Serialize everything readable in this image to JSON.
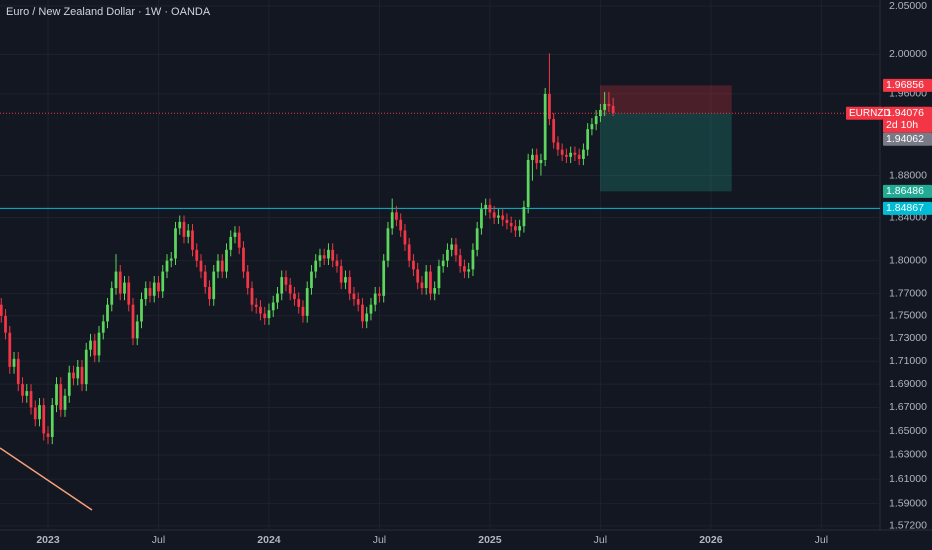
{
  "chart_data": {
    "type": "candlestick",
    "title": "Euro / New Zealand Dollar · 1W · OANDA",
    "symbol": "EURNZD",
    "countdown": "2d 10h",
    "log_scale": true,
    "grid": true,
    "up_color": "#5cd65c",
    "down_color": "#f23645",
    "xlim": [
      -11.3,
      195.8
    ],
    "xticks": [
      {
        "value": 0,
        "label": "2023"
      },
      {
        "value": 26,
        "label": "Jul"
      },
      {
        "value": 52,
        "label": "2024"
      },
      {
        "value": 78,
        "label": "Jul"
      },
      {
        "value": 104,
        "label": "2025"
      },
      {
        "value": 130,
        "label": "Jul"
      },
      {
        "value": 156,
        "label": "2026"
      },
      {
        "value": 182,
        "label": "Jul"
      }
    ],
    "ylim": [
      1.5687,
      2.0563
    ],
    "yticks": [
      {
        "value": 2.05,
        "label": "2.05000"
      },
      {
        "value": 2.0,
        "label": "2.00000"
      },
      {
        "value": 1.96,
        "label": "1.96000"
      },
      {
        "value": 1.88,
        "label": "1.88000"
      },
      {
        "value": 1.84,
        "label": "1.84000"
      },
      {
        "value": 1.8,
        "label": "1.80000"
      },
      {
        "value": 1.77,
        "label": "1.77000"
      },
      {
        "value": 1.75,
        "label": "1.75000"
      },
      {
        "value": 1.73,
        "label": "1.73000"
      },
      {
        "value": 1.71,
        "label": "1.71000"
      },
      {
        "value": 1.69,
        "label": "1.69000"
      },
      {
        "value": 1.67,
        "label": "1.67000"
      },
      {
        "value": 1.65,
        "label": "1.65000"
      },
      {
        "value": 1.63,
        "label": "1.63000"
      },
      {
        "value": 1.61,
        "label": "1.61000"
      },
      {
        "value": 1.59,
        "label": "1.59000"
      },
      {
        "value": 1.572,
        "label": "1.57200"
      }
    ],
    "x": [
      -11,
      -10,
      -9,
      -8,
      -7,
      -6,
      -5,
      -4,
      -3,
      -2,
      -1,
      0,
      1,
      2,
      3,
      4,
      5,
      6,
      7,
      8,
      9,
      10,
      11,
      12,
      13,
      14,
      15,
      16,
      17,
      18,
      19,
      20,
      21,
      22,
      23,
      24,
      25,
      26,
      27,
      28,
      29,
      30,
      31,
      32,
      33,
      34,
      35,
      36,
      37,
      38,
      39,
      40,
      41,
      42,
      43,
      44,
      45,
      46,
      47,
      48,
      49,
      50,
      51,
      52,
      53,
      54,
      55,
      56,
      57,
      58,
      59,
      60,
      61,
      62,
      63,
      64,
      65,
      66,
      67,
      68,
      69,
      70,
      71,
      72,
      73,
      74,
      75,
      76,
      77,
      78,
      79,
      80,
      81,
      82,
      83,
      84,
      85,
      86,
      87,
      88,
      89,
      90,
      91,
      92,
      93,
      94,
      95,
      96,
      97,
      98,
      99,
      100,
      101,
      102,
      103,
      104,
      105,
      106,
      107,
      108,
      109,
      110,
      111,
      112,
      113,
      114,
      115,
      116,
      117,
      118,
      119,
      120,
      121,
      122,
      123,
      124,
      125,
      126,
      127,
      128,
      129,
      130,
      131,
      132,
      133
    ],
    "open": [
      1.76,
      1.75,
      1.735,
      1.705,
      1.712,
      1.69,
      1.68,
      1.684,
      1.67,
      1.66,
      1.672,
      1.648,
      1.645,
      1.672,
      1.69,
      1.668,
      1.68,
      1.7,
      1.695,
      1.705,
      1.69,
      1.72,
      1.728,
      1.715,
      1.735,
      1.745,
      1.76,
      1.775,
      1.79,
      1.77,
      1.78,
      1.76,
      1.73,
      1.745,
      1.765,
      1.775,
      1.768,
      1.78,
      1.772,
      1.79,
      1.8,
      1.802,
      1.83,
      1.836,
      1.822,
      1.828,
      1.81,
      1.8,
      1.79,
      1.776,
      1.765,
      1.79,
      1.8,
      1.79,
      1.81,
      1.822,
      1.826,
      1.812,
      1.79,
      1.775,
      1.76,
      1.758,
      1.752,
      1.748,
      1.755,
      1.762,
      1.77,
      1.785,
      1.778,
      1.77,
      1.765,
      1.758,
      1.75,
      1.775,
      1.79,
      1.8,
      1.805,
      1.802,
      1.81,
      1.8,
      1.795,
      1.78,
      1.785,
      1.77,
      1.765,
      1.76,
      1.745,
      1.752,
      1.76,
      1.77,
      1.768,
      1.8,
      1.83,
      1.845,
      1.838,
      1.828,
      1.815,
      1.8,
      1.792,
      1.78,
      1.775,
      1.79,
      1.77,
      1.775,
      1.795,
      1.8,
      1.81,
      1.815,
      1.805,
      1.795,
      1.79,
      1.792,
      1.81,
      1.83,
      1.848,
      1.852,
      1.845,
      1.84,
      1.842,
      1.838,
      1.835,
      1.832,
      1.828,
      1.832,
      1.85,
      1.895,
      1.9,
      1.892,
      1.895,
      1.96,
      1.935,
      1.912,
      1.905,
      1.9,
      1.898,
      1.902,
      1.9,
      1.896,
      1.905,
      1.925,
      1.93,
      1.938,
      1.944,
      1.95,
      1.948
    ],
    "high": [
      1.766,
      1.756,
      1.741,
      1.718,
      1.718,
      1.696,
      1.69,
      1.69,
      1.676,
      1.678,
      1.678,
      1.654,
      1.678,
      1.696,
      1.696,
      1.686,
      1.706,
      1.706,
      1.711,
      1.711,
      1.726,
      1.734,
      1.734,
      1.741,
      1.751,
      1.766,
      1.781,
      1.806,
      1.796,
      1.786,
      1.786,
      1.766,
      1.751,
      1.771,
      1.781,
      1.781,
      1.786,
      1.786,
      1.796,
      1.806,
      1.808,
      1.836,
      1.842,
      1.842,
      1.834,
      1.834,
      1.816,
      1.806,
      1.796,
      1.782,
      1.796,
      1.806,
      1.806,
      1.816,
      1.828,
      1.832,
      1.832,
      1.818,
      1.796,
      1.781,
      1.766,
      1.764,
      1.758,
      1.761,
      1.768,
      1.776,
      1.791,
      1.791,
      1.784,
      1.776,
      1.771,
      1.764,
      1.781,
      1.796,
      1.806,
      1.811,
      1.811,
      1.816,
      1.816,
      1.806,
      1.801,
      1.791,
      1.791,
      1.776,
      1.771,
      1.766,
      1.758,
      1.766,
      1.776,
      1.776,
      1.806,
      1.836,
      1.858,
      1.851,
      1.844,
      1.834,
      1.821,
      1.806,
      1.798,
      1.786,
      1.796,
      1.796,
      1.781,
      1.801,
      1.806,
      1.816,
      1.821,
      1.821,
      1.811,
      1.801,
      1.798,
      1.816,
      1.836,
      1.854,
      1.858,
      1.858,
      1.851,
      1.848,
      1.848,
      1.844,
      1.841,
      1.838,
      1.838,
      1.856,
      1.901,
      1.906,
      1.906,
      1.901,
      1.966,
      2.001,
      1.941,
      1.918,
      1.911,
      1.906,
      1.908,
      1.908,
      1.906,
      1.911,
      1.931,
      1.936,
      1.944,
      1.95,
      1.962,
      1.962,
      1.956
    ],
    "low": [
      1.744,
      1.729,
      1.699,
      1.699,
      1.684,
      1.674,
      1.674,
      1.664,
      1.654,
      1.654,
      1.642,
      1.639,
      1.639,
      1.666,
      1.662,
      1.662,
      1.674,
      1.689,
      1.689,
      1.684,
      1.684,
      1.714,
      1.709,
      1.709,
      1.729,
      1.739,
      1.754,
      1.769,
      1.764,
      1.764,
      1.754,
      1.724,
      1.724,
      1.739,
      1.759,
      1.762,
      1.762,
      1.766,
      1.766,
      1.784,
      1.794,
      1.796,
      1.824,
      1.816,
      1.816,
      1.804,
      1.794,
      1.784,
      1.77,
      1.759,
      1.759,
      1.784,
      1.784,
      1.784,
      1.804,
      1.816,
      1.806,
      1.784,
      1.769,
      1.754,
      1.752,
      1.746,
      1.742,
      1.742,
      1.749,
      1.756,
      1.764,
      1.772,
      1.764,
      1.759,
      1.752,
      1.744,
      1.744,
      1.769,
      1.784,
      1.794,
      1.796,
      1.796,
      1.794,
      1.789,
      1.774,
      1.774,
      1.764,
      1.759,
      1.754,
      1.739,
      1.739,
      1.746,
      1.754,
      1.762,
      1.762,
      1.794,
      1.824,
      1.832,
      1.822,
      1.809,
      1.794,
      1.786,
      1.774,
      1.769,
      1.769,
      1.764,
      1.764,
      1.769,
      1.789,
      1.794,
      1.804,
      1.799,
      1.789,
      1.784,
      1.784,
      1.786,
      1.804,
      1.824,
      1.842,
      1.839,
      1.834,
      1.834,
      1.832,
      1.829,
      1.826,
      1.822,
      1.822,
      1.826,
      1.844,
      1.875,
      1.886,
      1.88,
      1.889,
      1.929,
      1.906,
      1.899,
      1.894,
      1.892,
      1.892,
      1.894,
      1.89,
      1.89,
      1.899,
      1.919,
      1.924,
      1.932,
      1.938,
      1.942,
      1.938
    ],
    "close": [
      1.75,
      1.735,
      1.705,
      1.712,
      1.69,
      1.68,
      1.684,
      1.67,
      1.66,
      1.672,
      1.648,
      1.645,
      1.672,
      1.69,
      1.668,
      1.68,
      1.7,
      1.695,
      1.705,
      1.69,
      1.72,
      1.728,
      1.715,
      1.735,
      1.745,
      1.76,
      1.775,
      1.79,
      1.77,
      1.78,
      1.76,
      1.73,
      1.745,
      1.765,
      1.775,
      1.768,
      1.78,
      1.772,
      1.79,
      1.8,
      1.802,
      1.83,
      1.836,
      1.822,
      1.828,
      1.81,
      1.8,
      1.79,
      1.776,
      1.765,
      1.79,
      1.8,
      1.79,
      1.81,
      1.822,
      1.826,
      1.812,
      1.79,
      1.775,
      1.76,
      1.758,
      1.752,
      1.748,
      1.755,
      1.762,
      1.77,
      1.785,
      1.778,
      1.77,
      1.765,
      1.758,
      1.75,
      1.775,
      1.79,
      1.8,
      1.805,
      1.802,
      1.81,
      1.8,
      1.795,
      1.78,
      1.785,
      1.77,
      1.765,
      1.76,
      1.745,
      1.752,
      1.76,
      1.77,
      1.768,
      1.8,
      1.83,
      1.845,
      1.838,
      1.828,
      1.815,
      1.8,
      1.792,
      1.78,
      1.775,
      1.79,
      1.77,
      1.775,
      1.795,
      1.8,
      1.81,
      1.815,
      1.805,
      1.795,
      1.79,
      1.792,
      1.81,
      1.83,
      1.848,
      1.852,
      1.845,
      1.84,
      1.842,
      1.838,
      1.835,
      1.832,
      1.828,
      1.832,
      1.85,
      1.895,
      1.9,
      1.892,
      1.895,
      1.96,
      1.935,
      1.912,
      1.905,
      1.9,
      1.898,
      1.902,
      1.9,
      1.896,
      1.905,
      1.925,
      1.93,
      1.938,
      1.944,
      1.95,
      1.948,
      1.941
    ],
    "position": {
      "x_start": 129.9,
      "x_end": 160.9,
      "stop": 1.96856,
      "entry": 1.94076,
      "target": 1.86486,
      "stop_color": "#f23645",
      "target_color": "#22ab94"
    },
    "last_price": 1.94076,
    "bid_price": 1.94062,
    "horizontal_line": {
      "value": 1.84867,
      "color": "#00bcd4"
    }
  }
}
